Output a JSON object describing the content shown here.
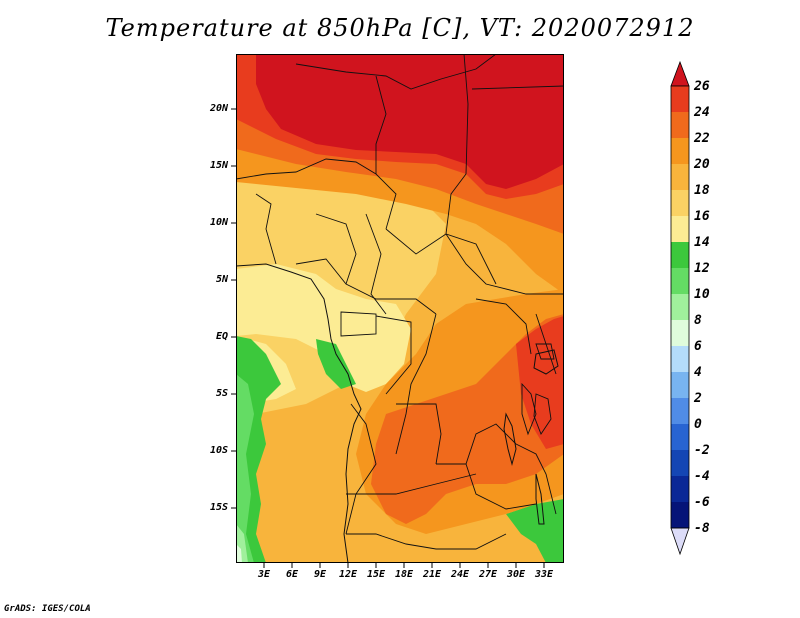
{
  "title": "Temperature at 850hPa [C], VT: 2020072912",
  "credit": "GrADS: IGES/COLA",
  "map": {
    "lat_labels": [
      "20N",
      "15N",
      "10N",
      "5N",
      "EQ",
      "5S",
      "10S",
      "15S"
    ],
    "lon_labels": [
      "3E",
      "6E",
      "9E",
      "12E",
      "15E",
      "18E",
      "21E",
      "24E",
      "27E",
      "30E",
      "33E"
    ]
  },
  "colorbar": {
    "labels": [
      "26",
      "24",
      "22",
      "20",
      "18",
      "16",
      "14",
      "12",
      "10",
      "8",
      "6",
      "4",
      "2",
      "0",
      "-2",
      "-4",
      "-6",
      "-8"
    ],
    "colors": {
      "above": "#d0141e",
      "24_26": "#e83c1e",
      "22_24": "#f06a1c",
      "20_22": "#f5961e",
      "18_20": "#f8b43c",
      "16_18": "#fad264",
      "14_16": "#fcec94",
      "12_14": "#3cc83c",
      "10_12": "#64dc64",
      "8_10": "#a0f09c",
      "6_8": "#e0fcdc",
      "4_6": "#b4dcfa",
      "2_4": "#78b4f0",
      "0_2": "#508ce6",
      "m2_0": "#2864d2",
      "m4_m2": "#1446b4",
      "m6_m4": "#0a2896",
      "m8_m6": "#051478",
      "below": "#dcdcf8"
    }
  }
}
